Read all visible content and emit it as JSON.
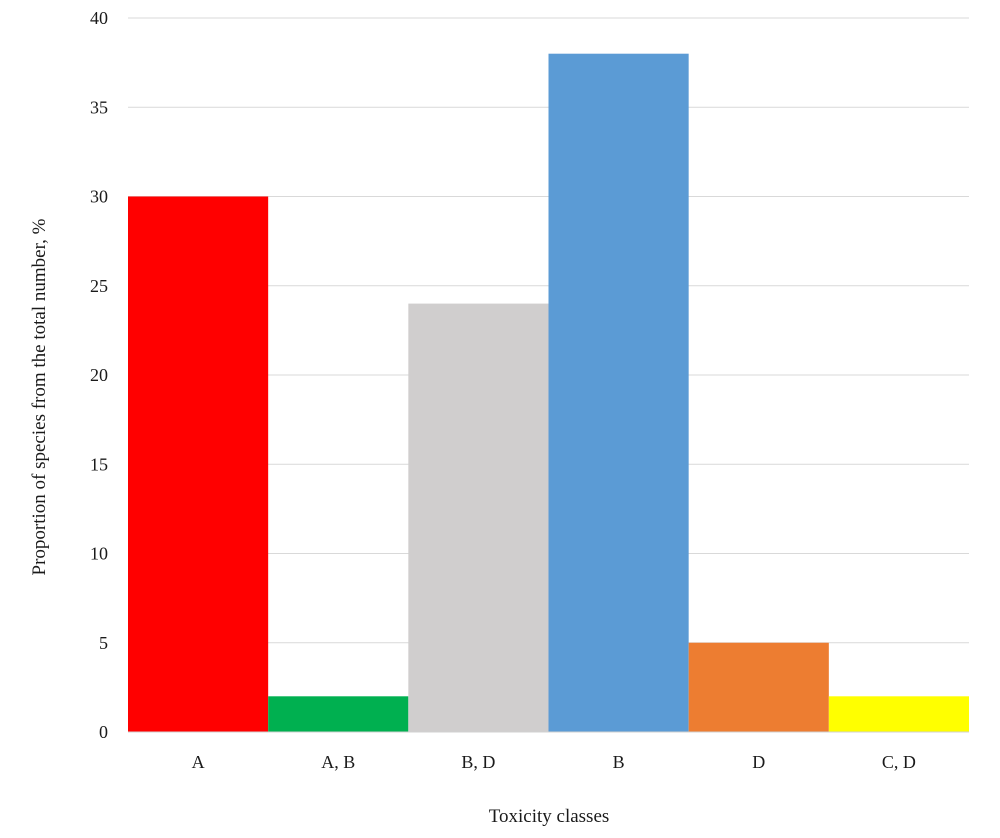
{
  "chart_data": {
    "type": "bar",
    "categories": [
      "A",
      "A, B",
      "B, D",
      "B",
      "D",
      "C, D"
    ],
    "values": [
      30,
      2,
      24,
      38,
      5,
      2
    ],
    "bar_colors": [
      "#ff0000",
      "#00b050",
      "#d0cece",
      "#5b9bd5",
      "#ed7d31",
      "#ffff00"
    ],
    "title": "",
    "xlabel": "Toxicity classes",
    "ylabel": "Proportion of species from the total number, %",
    "ylim": [
      0,
      40
    ],
    "yticks": [
      "0",
      "5",
      "10",
      "15",
      "20",
      "25",
      "30",
      "35",
      "40"
    ],
    "grid": true,
    "legend": "none"
  }
}
